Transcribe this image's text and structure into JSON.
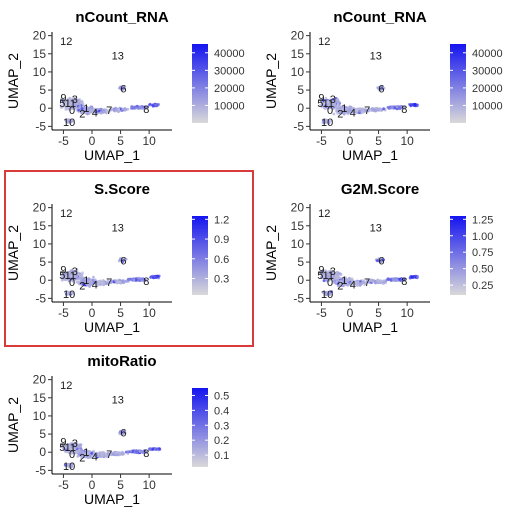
{
  "chart_data": [
    {
      "type": "scatter",
      "title": "nCount_RNA",
      "xlabel": "UMAP_1",
      "ylabel": "UMAP_2",
      "xlim": [
        -7,
        14
      ],
      "ylim": [
        -6,
        21
      ],
      "xticks": [
        -5,
        0,
        5,
        10
      ],
      "yticks": [
        -5,
        0,
        5,
        10,
        15,
        20
      ],
      "legend": {
        "placement": "right",
        "type": "colorbar",
        "min": 0,
        "max": 45000,
        "ticks": [
          10000,
          20000,
          30000,
          40000
        ],
        "tick_labels": [
          "10000",
          "20000",
          "30000",
          "40000"
        ]
      },
      "clusters": [
        {
          "label": "12",
          "x": -4.5,
          "y": 18.5
        },
        {
          "label": "13",
          "x": 4.5,
          "y": 14.5
        },
        {
          "label": "6",
          "x": 5.5,
          "y": 5.5
        },
        {
          "label": "9",
          "x": -5,
          "y": 3
        },
        {
          "label": "3",
          "x": -3,
          "y": 2.5
        },
        {
          "label": "5",
          "x": -5.2,
          "y": 1.5
        },
        {
          "label": "11",
          "x": -3.8,
          "y": 1.5
        },
        {
          "label": "1",
          "x": -1,
          "y": 0
        },
        {
          "label": "0",
          "x": -3.5,
          "y": -0.5
        },
        {
          "label": "2",
          "x": -1.7,
          "y": -1.5
        },
        {
          "label": "4",
          "x": 0.5,
          "y": -1.2
        },
        {
          "label": "7",
          "x": 3,
          "y": -0.5
        },
        {
          "label": "8",
          "x": 9.5,
          "y": -0.2
        },
        {
          "label": "10",
          "x": -4,
          "y": -3.8
        }
      ]
    },
    {
      "type": "scatter",
      "title": "nCount_RNA",
      "xlabel": "UMAP_1",
      "ylabel": "UMAP_2",
      "xlim": [
        -7,
        14
      ],
      "ylim": [
        -6,
        21
      ],
      "xticks": [
        -5,
        0,
        5,
        10
      ],
      "yticks": [
        -5,
        0,
        5,
        10,
        15,
        20
      ],
      "legend": {
        "placement": "right",
        "type": "colorbar",
        "min": 0,
        "max": 45000,
        "ticks": [
          10000,
          20000,
          30000,
          40000
        ],
        "tick_labels": [
          "10000",
          "20000",
          "30000",
          "40000"
        ]
      },
      "clusters": [
        {
          "label": "12",
          "x": -4.5,
          "y": 18.5
        },
        {
          "label": "13",
          "x": 4.5,
          "y": 14.5
        },
        {
          "label": "6",
          "x": 5.5,
          "y": 5.5
        },
        {
          "label": "9",
          "x": -5,
          "y": 3
        },
        {
          "label": "3",
          "x": -3,
          "y": 2.5
        },
        {
          "label": "5",
          "x": -5.2,
          "y": 1.5
        },
        {
          "label": "11",
          "x": -3.8,
          "y": 1.5
        },
        {
          "label": "1",
          "x": -1,
          "y": 0
        },
        {
          "label": "0",
          "x": -3.5,
          "y": -0.5
        },
        {
          "label": "2",
          "x": -1.7,
          "y": -1.5
        },
        {
          "label": "4",
          "x": 0.5,
          "y": -1.2
        },
        {
          "label": "7",
          "x": 3,
          "y": -0.5
        },
        {
          "label": "8",
          "x": 9.5,
          "y": -0.2
        },
        {
          "label": "10",
          "x": -4,
          "y": -3.8
        }
      ]
    },
    {
      "type": "scatter",
      "title": "S.Score",
      "xlabel": "UMAP_1",
      "ylabel": "UMAP_2",
      "xlim": [
        -7,
        14
      ],
      "ylim": [
        -6,
        21
      ],
      "xticks": [
        -5,
        0,
        5,
        10
      ],
      "yticks": [
        -5,
        0,
        5,
        10,
        15,
        20
      ],
      "highlighted": true,
      "legend": {
        "placement": "right",
        "type": "colorbar",
        "min": 0.05,
        "max": 1.25,
        "ticks": [
          0.3,
          0.6,
          0.9,
          1.2
        ],
        "tick_labels": [
          "0.3",
          "0.6",
          "0.9",
          "1.2"
        ]
      },
      "clusters": [
        {
          "label": "12",
          "x": -4.5,
          "y": 18.5
        },
        {
          "label": "13",
          "x": 4.5,
          "y": 14.5
        },
        {
          "label": "6",
          "x": 5.5,
          "y": 5.5
        },
        {
          "label": "9",
          "x": -5,
          "y": 3
        },
        {
          "label": "3",
          "x": -3,
          "y": 2.5
        },
        {
          "label": "5",
          "x": -5.2,
          "y": 1.5
        },
        {
          "label": "11",
          "x": -3.8,
          "y": 1.5
        },
        {
          "label": "1",
          "x": -1,
          "y": 0
        },
        {
          "label": "0",
          "x": -3.5,
          "y": -0.5
        },
        {
          "label": "2",
          "x": -1.7,
          "y": -1.5
        },
        {
          "label": "4",
          "x": 0.5,
          "y": -1.2
        },
        {
          "label": "7",
          "x": 3,
          "y": -0.5
        },
        {
          "label": "8",
          "x": 9.5,
          "y": -0.2
        },
        {
          "label": "10",
          "x": -4,
          "y": -3.8
        }
      ]
    },
    {
      "type": "scatter",
      "title": "G2M.Score",
      "xlabel": "UMAP_1",
      "ylabel": "UMAP_2",
      "xlim": [
        -7,
        14
      ],
      "ylim": [
        -6,
        21
      ],
      "xticks": [
        -5,
        0,
        5,
        10
      ],
      "yticks": [
        -5,
        0,
        5,
        10,
        15,
        20
      ],
      "legend": {
        "placement": "right",
        "type": "colorbar",
        "min": 0.1,
        "max": 1.3,
        "ticks": [
          0.25,
          0.5,
          0.75,
          1.0,
          1.25
        ],
        "tick_labels": [
          "0.25",
          "0.50",
          "0.75",
          "1.00",
          "1.25"
        ]
      },
      "clusters": [
        {
          "label": "12",
          "x": -4.5,
          "y": 18.5
        },
        {
          "label": "13",
          "x": 4.5,
          "y": 14.5
        },
        {
          "label": "6",
          "x": 5.5,
          "y": 5.5
        },
        {
          "label": "9",
          "x": -5,
          "y": 3
        },
        {
          "label": "3",
          "x": -3,
          "y": 2.5
        },
        {
          "label": "5",
          "x": -5.2,
          "y": 1.5
        },
        {
          "label": "11",
          "x": -3.8,
          "y": 1.5
        },
        {
          "label": "1",
          "x": -1,
          "y": 0
        },
        {
          "label": "0",
          "x": -3.5,
          "y": -0.5
        },
        {
          "label": "2",
          "x": -1.7,
          "y": -1.5
        },
        {
          "label": "4",
          "x": 0.5,
          "y": -1.2
        },
        {
          "label": "7",
          "x": 3,
          "y": -0.5
        },
        {
          "label": "8",
          "x": 9.5,
          "y": -0.2
        },
        {
          "label": "10",
          "x": -4,
          "y": -3.8
        }
      ]
    },
    {
      "type": "scatter",
      "title": "mitoRatio",
      "xlabel": "UMAP_1",
      "ylabel": "UMAP_2",
      "xlim": [
        -7,
        14
      ],
      "ylim": [
        -6,
        21
      ],
      "xticks": [
        -5,
        0,
        5,
        10
      ],
      "yticks": [
        -5,
        0,
        5,
        10,
        15,
        20
      ],
      "legend": {
        "placement": "right",
        "type": "colorbar",
        "min": 0.02,
        "max": 0.55,
        "ticks": [
          0.1,
          0.2,
          0.3,
          0.4,
          0.5
        ],
        "tick_labels": [
          "0.1",
          "0.2",
          "0.3",
          "0.4",
          "0.5"
        ]
      },
      "clusters": [
        {
          "label": "12",
          "x": -4.5,
          "y": 18.5
        },
        {
          "label": "13",
          "x": 4.5,
          "y": 14.5
        },
        {
          "label": "6",
          "x": 5.5,
          "y": 5.5
        },
        {
          "label": "9",
          "x": -5,
          "y": 3
        },
        {
          "label": "3",
          "x": -3,
          "y": 2.5
        },
        {
          "label": "5",
          "x": -5.2,
          "y": 1.5
        },
        {
          "label": "11",
          "x": -3.8,
          "y": 1.5
        },
        {
          "label": "1",
          "x": -1,
          "y": 0
        },
        {
          "label": "0",
          "x": -3.5,
          "y": -0.5
        },
        {
          "label": "2",
          "x": -1.7,
          "y": -1.5
        },
        {
          "label": "4",
          "x": 0.5,
          "y": -1.2
        },
        {
          "label": "7",
          "x": 3,
          "y": -0.5
        },
        {
          "label": "8",
          "x": 9.5,
          "y": -0.2
        },
        {
          "label": "10",
          "x": -4,
          "y": -3.8
        }
      ]
    }
  ],
  "colors": {
    "low": "#d9d9d9",
    "high": "#1414f0",
    "highlight_border": "#d93a3a"
  }
}
